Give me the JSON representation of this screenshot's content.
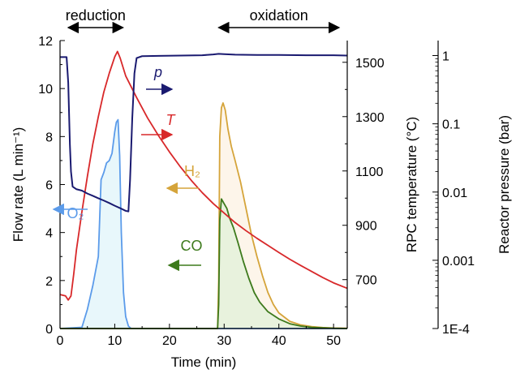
{
  "chart_data": {
    "type": "line",
    "xlabel": "Time (min)",
    "ylabel_left": "Flow rate (L min⁻¹)",
    "ylabel_right1": "RPC temperature (°C)",
    "ylabel_right2": "Reactor pressure (bar)",
    "xlim": [
      0,
      52.5
    ],
    "ylim_left": [
      0,
      12
    ],
    "ylim_temp": [
      520,
      1580
    ],
    "ylim_pressure_log10": [
      -4,
      0.22
    ],
    "x_ticks": [
      "0",
      "10",
      "20",
      "30",
      "40",
      "50"
    ],
    "y_left_ticks": [
      "0",
      "2",
      "4",
      "6",
      "8",
      "10",
      "12"
    ],
    "y_temp_ticks": [
      "700",
      "900",
      "1100",
      "1300",
      "1500"
    ],
    "y_pressure_ticks": [
      "1E-4",
      "0.001",
      "0.01",
      "0.1",
      "1"
    ],
    "phases": [
      {
        "label": "reduction",
        "start": 1.5,
        "end": 11.5
      },
      {
        "label": "oxidation",
        "start": 29,
        "end": 51
      }
    ],
    "series": [
      {
        "name": "O₂",
        "axis": "flow",
        "color": "#5b9bea",
        "fill": "#e6f6fb",
        "x": [
          0,
          4,
          5,
          6,
          7,
          7.5,
          8,
          8.5,
          9,
          9.5,
          10,
          10.3,
          10.6,
          10.9,
          11.2,
          11.6,
          12,
          12.5,
          13,
          52.5
        ],
        "y": [
          0,
          0.05,
          0.8,
          1.8,
          3.0,
          6.2,
          6.5,
          6.9,
          7.0,
          7.3,
          8.2,
          8.6,
          8.7,
          7.2,
          4.0,
          1.5,
          0.5,
          0.1,
          0,
          0
        ]
      },
      {
        "name": "H₂",
        "axis": "flow",
        "color": "#d5a43a",
        "fill": "#fdf4e8",
        "x": [
          0,
          28.8,
          29,
          29.2,
          29.5,
          29.8,
          30.2,
          30.7,
          31.3,
          32,
          33,
          34,
          35,
          36,
          37,
          38,
          39,
          40,
          42,
          44,
          46,
          48,
          50,
          52.5
        ],
        "y": [
          0,
          0,
          2.0,
          8.0,
          9.2,
          9.4,
          9.1,
          8.3,
          7.6,
          7.0,
          6.1,
          5.0,
          3.9,
          3.0,
          2.2,
          1.5,
          1.0,
          0.65,
          0.3,
          0.15,
          0.08,
          0.04,
          0.02,
          0.01
        ]
      },
      {
        "name": "CO",
        "axis": "flow",
        "color": "#3d7a1c",
        "fill": "#e5f2dc",
        "x": [
          0,
          28.8,
          29,
          29.2,
          29.5,
          30,
          30.5,
          31,
          31.7,
          32.5,
          33.5,
          34.5,
          35.5,
          36.5,
          38,
          40,
          42,
          44,
          46,
          48,
          50,
          52.5
        ],
        "y": [
          0,
          0,
          1.0,
          4.5,
          5.4,
          5.2,
          5.0,
          4.6,
          4.2,
          3.6,
          2.8,
          2.1,
          1.5,
          1.1,
          0.7,
          0.4,
          0.2,
          0.1,
          0.05,
          0.03,
          0.01,
          0
        ]
      },
      {
        "name": "T",
        "axis": "temperature",
        "color": "#d8282a",
        "x": [
          0,
          1,
          1.5,
          2,
          2.5,
          3,
          4,
          5,
          6,
          7,
          8,
          9,
          10,
          10.5,
          11,
          12,
          14,
          16,
          18,
          20,
          22,
          24,
          26,
          28,
          30,
          32,
          34,
          36,
          38,
          40,
          42,
          44,
          46,
          48,
          50,
          52.5
        ],
        "y": [
          645,
          640,
          625,
          640,
          720,
          810,
          950,
          1080,
          1200,
          1300,
          1390,
          1460,
          1520,
          1540,
          1515,
          1450,
          1370,
          1295,
          1230,
          1170,
          1115,
          1065,
          1020,
          980,
          945,
          910,
          880,
          852,
          826,
          800,
          775,
          752,
          730,
          708,
          688,
          668
        ]
      },
      {
        "name": "p",
        "axis": "pressure",
        "color": "#1a1a70",
        "x": [
          0,
          1.2,
          1.5,
          1.8,
          2.0,
          2.3,
          3,
          4,
          5,
          6,
          7,
          8,
          9,
          10,
          11,
          12,
          12.5,
          12.8,
          13.2,
          13.6,
          14,
          15,
          18,
          22,
          26,
          28,
          29,
          30,
          32,
          36,
          40,
          45,
          50,
          52.5
        ],
        "y": [
          0.95,
          0.95,
          0.4,
          0.05,
          0.02,
          0.012,
          0.011,
          0.0105,
          0.0095,
          0.0088,
          0.0081,
          0.0075,
          0.0069,
          0.0063,
          0.0058,
          0.0053,
          0.0052,
          0.015,
          0.12,
          0.55,
          0.92,
          0.98,
          0.99,
          1.0,
          1.01,
          1.04,
          1.06,
          1.05,
          1.03,
          1.02,
          1.02,
          1.01,
          1.01,
          1.0
        ]
      }
    ],
    "annotations": [
      {
        "text": "p",
        "italic": true,
        "color": "#1a1a70",
        "arrow": "right"
      },
      {
        "text": "T",
        "italic": true,
        "color": "#d8282a",
        "arrow": "right"
      },
      {
        "text": "O₂",
        "color": "#5b9bea",
        "arrow": "left"
      },
      {
        "text": "H₂",
        "color": "#d5a43a",
        "arrow": "left"
      },
      {
        "text": "CO",
        "color": "#3d7a1c",
        "arrow": "left"
      }
    ],
    "grid": false,
    "legend": "none"
  }
}
